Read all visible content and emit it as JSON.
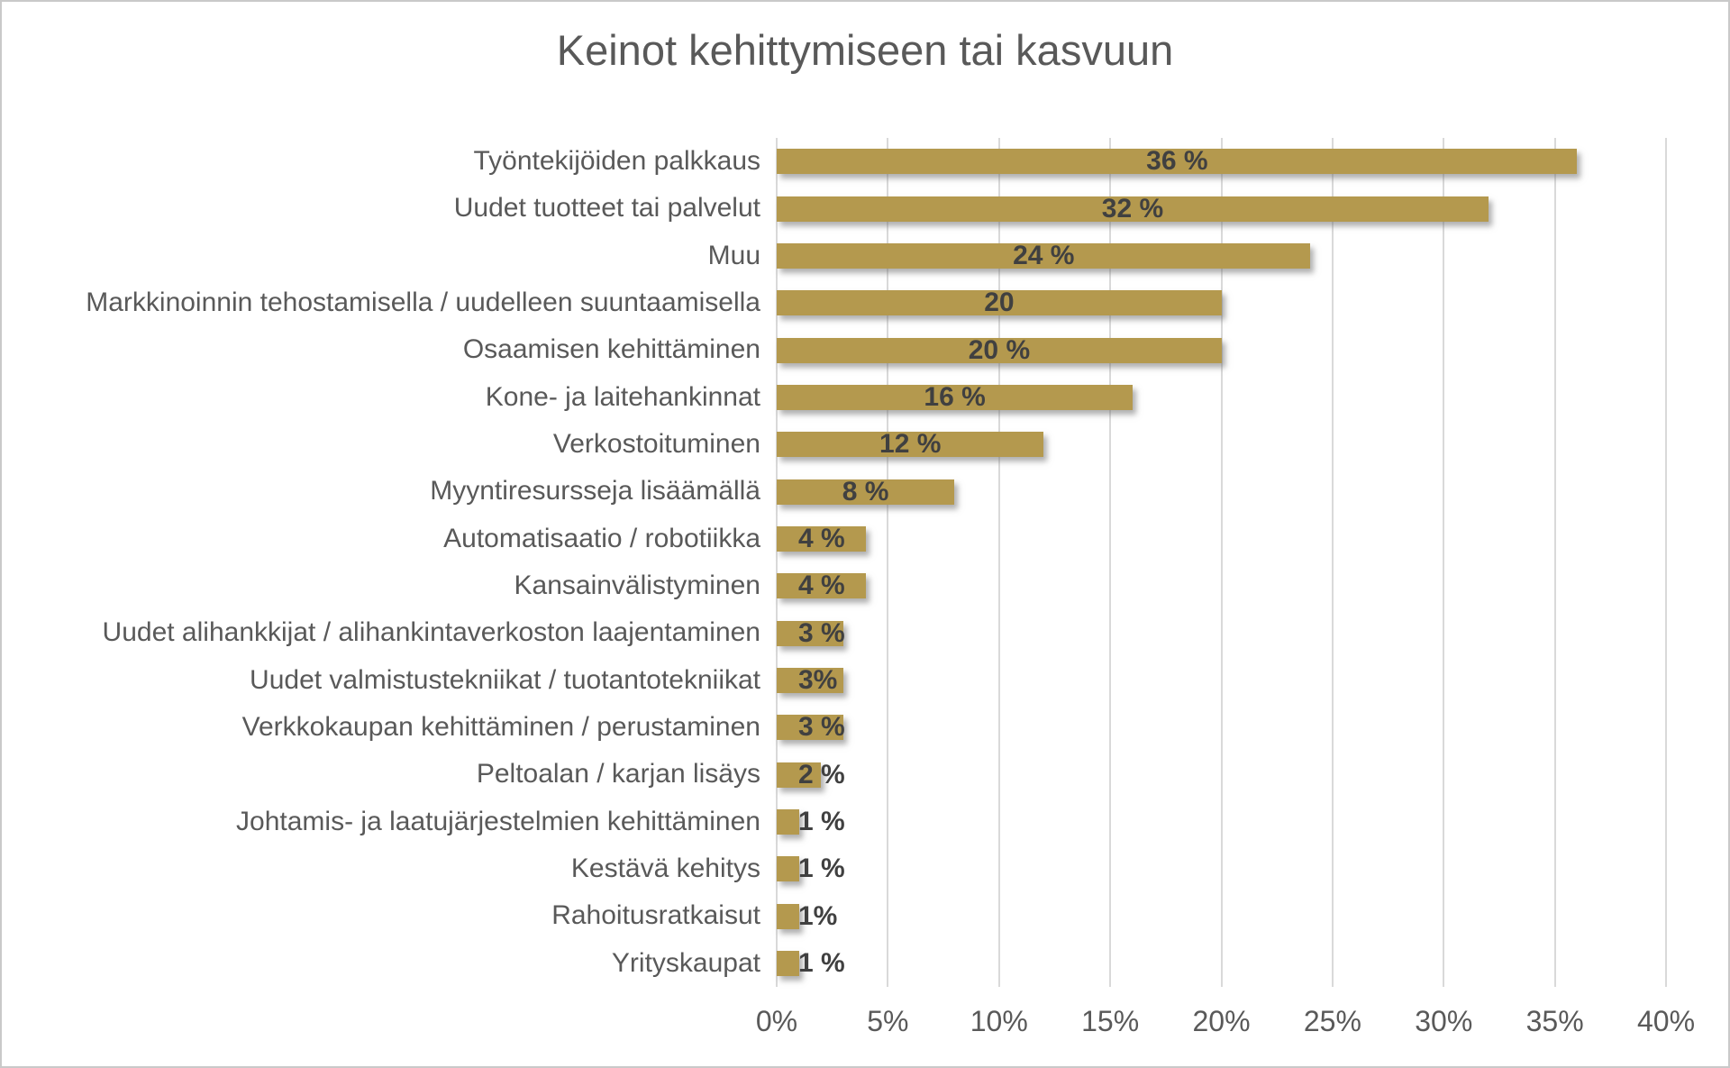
{
  "window": {
    "background": "#FFFFFF",
    "border_color": "#C9C9C9"
  },
  "chart_data": {
    "type": "bar",
    "orientation": "horizontal",
    "title": "Keinot kehittymiseen tai kasvuun",
    "categories": [
      "Työntekijöiden palkkaus",
      "Uudet tuotteet tai palvelut",
      "Muu",
      "Markkinoinnin tehostamisella / uudelleen suuntaamisella",
      "Osaamisen kehittäminen",
      "Kone- ja laitehankinnat",
      "Verkostoituminen",
      "Myyntiresursseja lisäämällä",
      "Automatisaatio / robotiikka",
      "Kansainvälistyminen",
      "Uudet alihankkijat / alihankintaverkoston laajentaminen",
      "Uudet valmistustekniikat / tuotantotekniikat",
      "Verkkokaupan kehittäminen / perustaminen",
      "Peltoalan / karjan lisäys",
      "Johtamis- ja laatujärjestelmien kehittäminen",
      "Kestävä kehitys",
      "Rahoitusratkaisut",
      "Yrityskaupat"
    ],
    "values": [
      36,
      32,
      24,
      20,
      20,
      16,
      12,
      8,
      4,
      4,
      3,
      3,
      3,
      2,
      1,
      1,
      1,
      1
    ],
    "data_labels": [
      "36 %",
      "32 %",
      "24 %",
      "20",
      "20 %",
      "16 %",
      "12 %",
      "8 %",
      "4 %",
      "4 %",
      "3 %",
      "3%",
      "3 %",
      "2 %",
      "1 %",
      "1 %",
      "1%",
      "1 %"
    ],
    "x_tick_labels": [
      "0%",
      "5%",
      "10%",
      "15%",
      "20%",
      "25%",
      "30%",
      "35%",
      "40%"
    ],
    "xlim": [
      0,
      40
    ],
    "x_tick_step": 5,
    "grid": true,
    "legend": "none",
    "colors": {
      "bar": "#B4994E",
      "data_label": "#404040",
      "category_text": "#595959",
      "axis_text": "#595959",
      "title": "#595959",
      "gridline": "#D9D9D9"
    }
  }
}
